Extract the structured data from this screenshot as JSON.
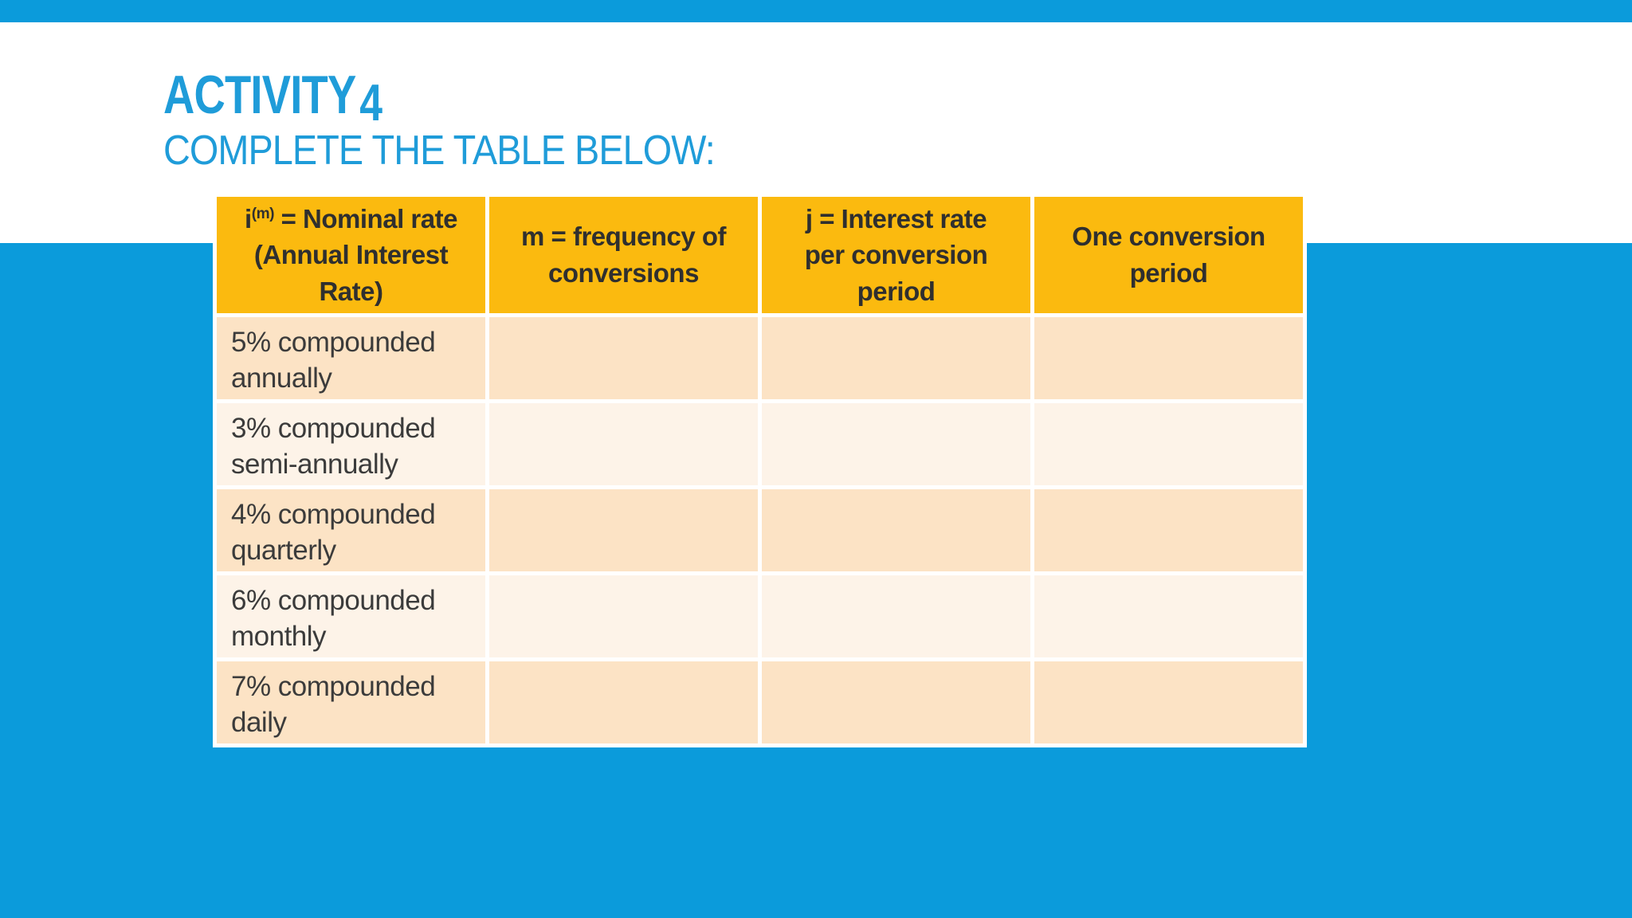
{
  "slide": {
    "title": "ACTIVITY",
    "title_number": "4",
    "subtitle": "COMPLETE THE TABLE BELOW:",
    "colors": {
      "background_blue": "#0B9BDB",
      "title_blue": "#1F9CD9",
      "header_yellow": "#FBBA0F",
      "row_peach": "#FCE3C5",
      "row_cream": "#FDF3E8",
      "header_text": "#2F2F2F",
      "body_text": "#3B3B3B"
    },
    "table": {
      "headers": [
        {
          "prefix": "i",
          "sup": "(m)",
          "text": " = Nominal rate\n(Annual Interest\nRate)"
        },
        {
          "prefix": "",
          "sup": "",
          "text": "m = frequency of\nconversions"
        },
        {
          "prefix": "",
          "sup": "",
          "text": "j = Interest rate\nper conversion\nperiod"
        },
        {
          "prefix": "",
          "sup": "",
          "text": "One conversion\nperiod"
        }
      ],
      "rows": [
        {
          "label": "5% compounded\nannually",
          "m": "",
          "j": "",
          "one_period": ""
        },
        {
          "label": "3% compounded\nsemi-annually",
          "m": "",
          "j": "",
          "one_period": ""
        },
        {
          "label": "4% compounded\nquarterly",
          "m": "",
          "j": "",
          "one_period": ""
        },
        {
          "label": "6% compounded\nmonthly",
          "m": "",
          "j": "",
          "one_period": ""
        },
        {
          "label": "7% compounded\ndaily",
          "m": "",
          "j": "",
          "one_period": ""
        }
      ]
    }
  }
}
